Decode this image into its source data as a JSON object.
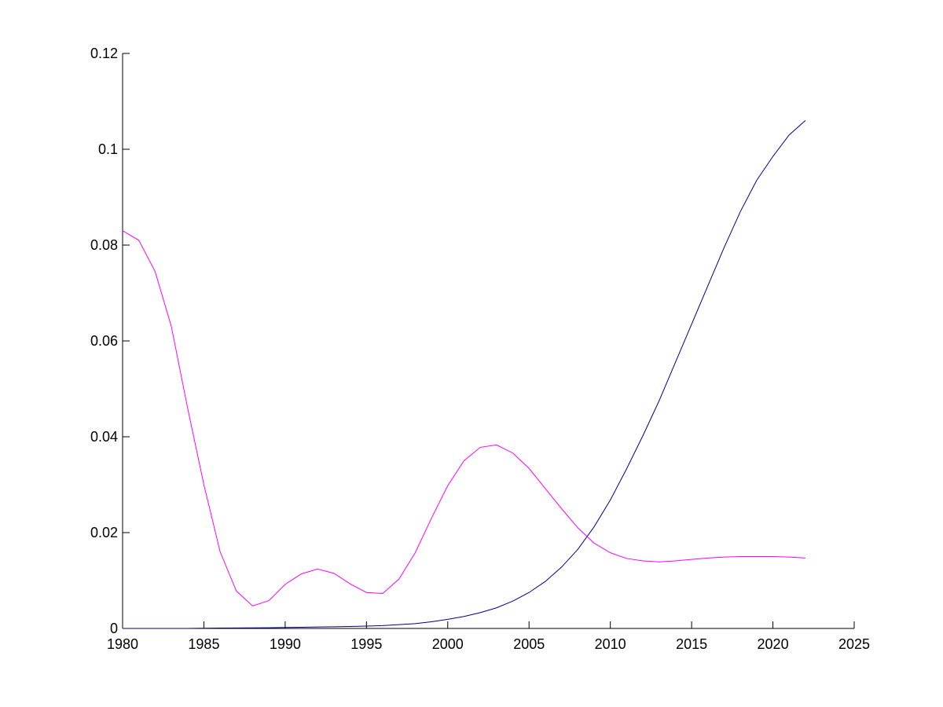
{
  "chart_data": {
    "type": "line",
    "x": [
      1980,
      1981,
      1982,
      1983,
      1984,
      1985,
      1986,
      1987,
      1988,
      1989,
      1990,
      1991,
      1992,
      1993,
      1994,
      1995,
      1996,
      1997,
      1998,
      1999,
      2000,
      2001,
      2002,
      2003,
      2004,
      2005,
      2006,
      2007,
      2008,
      2009,
      2010,
      2011,
      2012,
      2013,
      2014,
      2015,
      2016,
      2017,
      2018,
      2019,
      2020,
      2021,
      2022
    ],
    "series": [
      {
        "color": "#00008b",
        "values": [
          0,
          0,
          0,
          0,
          0,
          5e-05,
          8e-05,
          0.0001,
          0.00012,
          0.00015,
          0.0002,
          0.00025,
          0.0003,
          0.00035,
          0.0004,
          0.0005,
          0.0006,
          0.0008,
          0.001,
          0.0014,
          0.0019,
          0.0025,
          0.0033,
          0.0043,
          0.0057,
          0.0075,
          0.0098,
          0.0128,
          0.0165,
          0.0212,
          0.0268,
          0.0333,
          0.0402,
          0.0475,
          0.0555,
          0.0635,
          0.0715,
          0.0795,
          0.087,
          0.0935,
          0.0985,
          0.103,
          0.106
        ]
      },
      {
        "color": "#ff00ff",
        "values": [
          0.083,
          0.081,
          0.0745,
          0.063,
          0.046,
          0.03,
          0.016,
          0.0078,
          0.0047,
          0.0058,
          0.0092,
          0.0114,
          0.0124,
          0.0115,
          0.0093,
          0.0075,
          0.0073,
          0.0103,
          0.0158,
          0.023,
          0.0298,
          0.035,
          0.0378,
          0.0383,
          0.0366,
          0.0334,
          0.0292,
          0.025,
          0.021,
          0.0178,
          0.0158,
          0.0146,
          0.0141,
          0.0139,
          0.0141,
          0.0144,
          0.0147,
          0.0149,
          0.015,
          0.015,
          0.015,
          0.0149,
          0.0147
        ]
      }
    ],
    "xlim": [
      1980,
      2025
    ],
    "xticks": [
      1980,
      1985,
      1990,
      1995,
      2000,
      2005,
      2010,
      2015,
      2020,
      2025
    ],
    "ylim": [
      0,
      0.12
    ],
    "yticks": [
      0,
      0.02,
      0.04,
      0.06,
      0.08,
      0.1,
      0.12
    ],
    "grid": false
  }
}
